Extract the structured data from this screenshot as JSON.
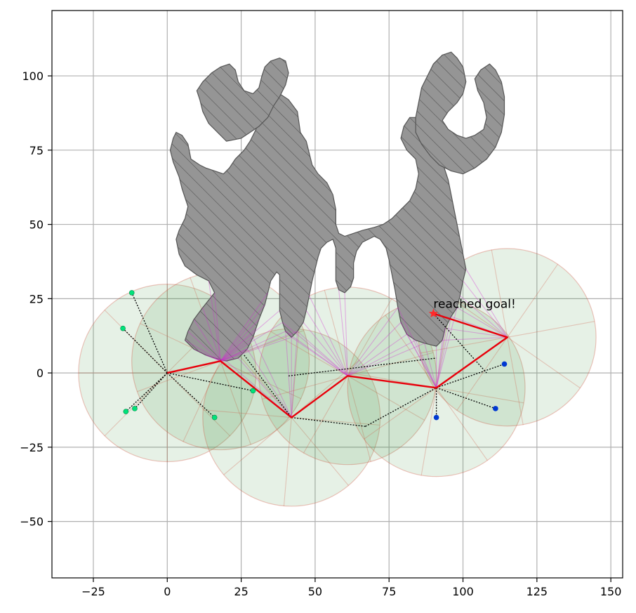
{
  "chart_data": {
    "type": "scatter",
    "title": "",
    "xlabel": "",
    "ylabel": "",
    "xlim": [
      -39,
      154
    ],
    "ylim": [
      -69,
      122
    ],
    "grid": true,
    "x_ticks": [
      -25,
      0,
      25,
      50,
      75,
      100,
      125,
      150
    ],
    "y_ticks": [
      -50,
      -25,
      0,
      25,
      50,
      75,
      100
    ],
    "x_tick_labels": [
      "−25",
      "0",
      "25",
      "50",
      "75",
      "100",
      "125",
      "150"
    ],
    "y_tick_labels": [
      "−50",
      "−25",
      "0",
      "25",
      "50",
      "75",
      "100"
    ],
    "annotation": {
      "text": "reached goal!",
      "x": 90,
      "y": 20
    },
    "goal": {
      "x": 90,
      "y": 20,
      "marker": "star",
      "color": "#ff2a2a"
    },
    "path": {
      "color": "#e8000b",
      "points": [
        [
          0,
          0
        ],
        [
          18,
          4
        ],
        [
          42,
          -15
        ],
        [
          61,
          -1
        ],
        [
          91,
          -5
        ],
        [
          115,
          12
        ],
        [
          90,
          20
        ]
      ]
    },
    "sensing_circles": [
      {
        "x": 0,
        "y": 0,
        "r": 30
      },
      {
        "x": 18,
        "y": 4,
        "r": 30
      },
      {
        "x": 42,
        "y": -15,
        "r": 30
      },
      {
        "x": 61,
        "y": -1,
        "r": 30
      },
      {
        "x": 91,
        "y": -5,
        "r": 30
      },
      {
        "x": 115,
        "y": 12,
        "r": 30
      }
    ],
    "start_samples": {
      "color": "#00e27a",
      "points": [
        [
          -12,
          27
        ],
        [
          -15,
          15
        ],
        [
          -14,
          -13
        ],
        [
          -11,
          -12
        ],
        [
          16,
          -15
        ],
        [
          29,
          -6
        ]
      ]
    },
    "goal_samples": {
      "color": "#0038d1",
      "points": [
        [
          114,
          3
        ],
        [
          111,
          -12
        ],
        [
          91,
          -15
        ]
      ]
    },
    "links": [
      [
        [
          0,
          0
        ],
        [
          -12,
          27
        ]
      ],
      [
        [
          0,
          0
        ],
        [
          -15,
          15
        ]
      ],
      [
        [
          0,
          0
        ],
        [
          -14,
          -13
        ]
      ],
      [
        [
          0,
          0
        ],
        [
          -11,
          -12
        ]
      ],
      [
        [
          0,
          0
        ],
        [
          16,
          -15
        ]
      ],
      [
        [
          0,
          0
        ],
        [
          29,
          -6
        ]
      ],
      [
        [
          18,
          4
        ],
        [
          42,
          -15
        ]
      ],
      [
        [
          26,
          6
        ],
        [
          42,
          -15
        ]
      ],
      [
        [
          42,
          -15
        ],
        [
          67,
          -18
        ]
      ],
      [
        [
          67,
          -18
        ],
        [
          91,
          -5
        ]
      ],
      [
        [
          41,
          -1
        ],
        [
          91,
          5
        ]
      ],
      [
        [
          91,
          -5
        ],
        [
          91,
          -15
        ]
      ],
      [
        [
          91,
          -5
        ],
        [
          111,
          -12
        ]
      ],
      [
        [
          91,
          -5
        ],
        [
          114,
          3
        ]
      ],
      [
        [
          90,
          20
        ],
        [
          108,
          0
        ]
      ],
      [
        [
          90,
          20
        ],
        [
          115,
          12
        ]
      ]
    ],
    "obstacles": [
      [
        [
          45,
          81
        ],
        [
          44,
          88
        ],
        [
          41,
          92
        ],
        [
          38,
          94
        ],
        [
          36,
          98
        ],
        [
          35,
          96
        ],
        [
          33,
          91
        ],
        [
          31,
          86
        ],
        [
          30,
          82
        ],
        [
          28,
          78
        ],
        [
          26,
          75
        ],
        [
          23,
          72
        ],
        [
          21,
          69
        ],
        [
          19,
          67
        ],
        [
          16,
          68
        ],
        [
          13,
          69
        ],
        [
          11,
          70
        ],
        [
          8,
          72
        ],
        [
          7,
          77
        ],
        [
          5,
          80
        ],
        [
          3,
          81
        ],
        [
          2,
          79
        ],
        [
          1,
          75
        ],
        [
          2,
          71
        ],
        [
          4,
          66
        ],
        [
          5,
          62
        ],
        [
          7,
          56
        ],
        [
          6,
          52
        ],
        [
          4,
          48
        ],
        [
          3,
          45
        ],
        [
          4,
          40
        ],
        [
          6,
          36
        ],
        [
          10,
          33
        ],
        [
          14,
          31
        ],
        [
          16,
          27
        ],
        [
          12,
          22
        ],
        [
          9,
          18
        ],
        [
          7,
          14
        ],
        [
          6,
          11
        ],
        [
          9,
          8
        ],
        [
          13,
          6
        ],
        [
          16,
          5
        ],
        [
          20,
          4
        ],
        [
          24,
          5
        ],
        [
          27,
          8
        ],
        [
          29,
          12
        ],
        [
          30,
          15
        ],
        [
          31,
          18
        ],
        [
          33,
          23
        ],
        [
          34,
          27
        ],
        [
          35,
          31
        ],
        [
          37,
          34
        ],
        [
          38,
          33
        ],
        [
          38,
          27
        ],
        [
          38,
          21
        ],
        [
          39,
          17
        ],
        [
          40,
          14
        ],
        [
          42,
          12
        ],
        [
          44,
          14
        ],
        [
          46,
          17
        ],
        [
          47,
          21
        ],
        [
          48,
          26
        ],
        [
          49,
          31
        ],
        [
          50,
          35
        ],
        [
          51,
          39
        ],
        [
          52,
          42
        ],
        [
          54,
          44
        ],
        [
          56,
          45
        ],
        [
          57,
          42
        ],
        [
          57,
          36
        ],
        [
          57,
          31
        ],
        [
          58,
          28
        ],
        [
          60,
          27
        ],
        [
          62,
          29
        ],
        [
          63,
          32
        ],
        [
          63,
          37
        ],
        [
          64,
          41
        ],
        [
          66,
          44
        ],
        [
          68,
          45
        ],
        [
          70,
          46
        ],
        [
          72,
          45
        ],
        [
          74,
          42
        ],
        [
          75,
          38
        ],
        [
          76,
          33
        ],
        [
          77,
          28
        ],
        [
          78,
          22
        ],
        [
          79,
          17
        ],
        [
          81,
          13
        ],
        [
          84,
          11
        ],
        [
          87,
          10
        ],
        [
          91,
          9
        ],
        [
          93,
          11
        ],
        [
          94,
          15
        ],
        [
          96,
          19
        ],
        [
          98,
          22
        ],
        [
          99,
          26
        ],
        [
          100,
          31
        ],
        [
          101,
          35
        ],
        [
          100,
          40
        ],
        [
          99,
          45
        ],
        [
          98,
          50
        ],
        [
          97,
          55
        ],
        [
          96,
          60
        ],
        [
          95,
          65
        ],
        [
          93,
          71
        ],
        [
          91,
          76
        ],
        [
          89,
          80
        ],
        [
          87,
          84
        ],
        [
          85,
          86
        ],
        [
          82,
          86
        ],
        [
          80,
          83
        ],
        [
          79,
          79
        ],
        [
          81,
          75
        ],
        [
          84,
          72
        ],
        [
          85,
          67
        ],
        [
          84,
          62
        ],
        [
          82,
          58
        ],
        [
          79,
          55
        ],
        [
          76,
          52
        ],
        [
          73,
          50
        ],
        [
          70,
          49
        ],
        [
          66,
          48
        ],
        [
          63,
          47
        ],
        [
          60,
          46
        ],
        [
          58,
          47
        ],
        [
          57,
          50
        ],
        [
          57,
          55
        ],
        [
          56,
          60
        ],
        [
          54,
          64
        ],
        [
          51,
          67
        ],
        [
          49,
          70
        ],
        [
          48,
          74
        ],
        [
          47,
          78
        ]
      ],
      [
        [
          88,
          100
        ],
        [
          90,
          104
        ],
        [
          93,
          107
        ],
        [
          96,
          108
        ],
        [
          98,
          106
        ],
        [
          100,
          103
        ],
        [
          101,
          98
        ],
        [
          100,
          94
        ],
        [
          98,
          91
        ],
        [
          95,
          88
        ],
        [
          93,
          85
        ],
        [
          95,
          82
        ],
        [
          98,
          80
        ],
        [
          101,
          79
        ],
        [
          104,
          80
        ],
        [
          107,
          82
        ],
        [
          108,
          86
        ],
        [
          107,
          91
        ],
        [
          105,
          95
        ],
        [
          104,
          99
        ],
        [
          106,
          102
        ],
        [
          109,
          104
        ],
        [
          111,
          102
        ],
        [
          113,
          98
        ],
        [
          114,
          93
        ],
        [
          114,
          87
        ],
        [
          113,
          81
        ],
        [
          111,
          76
        ],
        [
          108,
          72
        ],
        [
          104,
          69
        ],
        [
          100,
          67
        ],
        [
          96,
          68
        ],
        [
          92,
          70
        ],
        [
          89,
          73
        ],
        [
          86,
          77
        ],
        [
          84,
          81
        ],
        [
          84,
          86
        ],
        [
          85,
          91
        ],
        [
          86,
          96
        ]
      ],
      [
        [
          20,
          78
        ],
        [
          17,
          81
        ],
        [
          14,
          84
        ],
        [
          12,
          88
        ],
        [
          11,
          92
        ],
        [
          10,
          95
        ],
        [
          12,
          98
        ],
        [
          15,
          101
        ],
        [
          18,
          103
        ],
        [
          21,
          104
        ],
        [
          23,
          102
        ],
        [
          24,
          98
        ],
        [
          26,
          95
        ],
        [
          29,
          94
        ],
        [
          31,
          96
        ],
        [
          32,
          100
        ],
        [
          33,
          103
        ],
        [
          35,
          105
        ],
        [
          38,
          106
        ],
        [
          40,
          105
        ],
        [
          41,
          101
        ],
        [
          40,
          97
        ],
        [
          38,
          93
        ],
        [
          36,
          90
        ],
        [
          34,
          86
        ],
        [
          31,
          83
        ],
        [
          28,
          81
        ],
        [
          25,
          79
        ]
      ]
    ]
  }
}
